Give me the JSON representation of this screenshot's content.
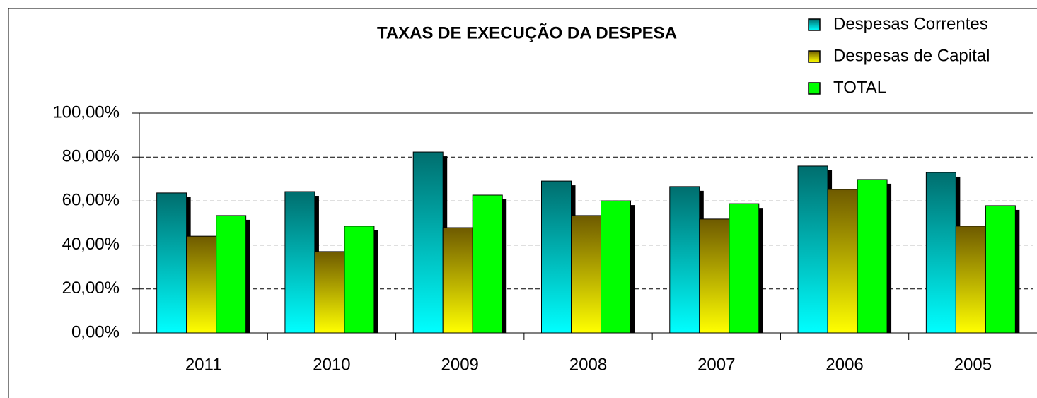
{
  "chart_data": {
    "type": "bar",
    "title": "TAXAS DE EXECUÇÃO DA DESPESA",
    "categories": [
      "2011",
      "2010",
      "2009",
      "2008",
      "2007",
      "2006",
      "2005"
    ],
    "series": [
      {
        "name": "Despesas Correntes",
        "color": "#007070",
        "gradient": [
          "#006e6e",
          "#00ffff"
        ],
        "values": [
          63.7,
          64.3,
          82.3,
          69.1,
          66.6,
          75.9,
          73.0
        ]
      },
      {
        "name": "Despesas de Capital",
        "color": "#7a6000",
        "gradient": [
          "#6e5a00",
          "#ffff00"
        ],
        "values": [
          44.0,
          37.0,
          47.9,
          53.4,
          51.8,
          65.3,
          48.6
        ]
      },
      {
        "name": "TOTAL",
        "color": "#00ff00",
        "gradient": [
          "#00ff00",
          "#00ff00"
        ],
        "values": [
          53.4,
          48.6,
          62.7,
          60.1,
          58.8,
          69.8,
          57.9
        ]
      }
    ],
    "ylim": [
      0,
      100
    ],
    "yticks": [
      {
        "value": 0,
        "label": "0,00%"
      },
      {
        "value": 20,
        "label": "20,00%"
      },
      {
        "value": 40,
        "label": "40,00%"
      },
      {
        "value": 60,
        "label": "60,00%"
      },
      {
        "value": 80,
        "label": "80,00%"
      },
      {
        "value": 100,
        "label": "100,00%"
      }
    ],
    "grid": true,
    "legend": "top-right"
  }
}
